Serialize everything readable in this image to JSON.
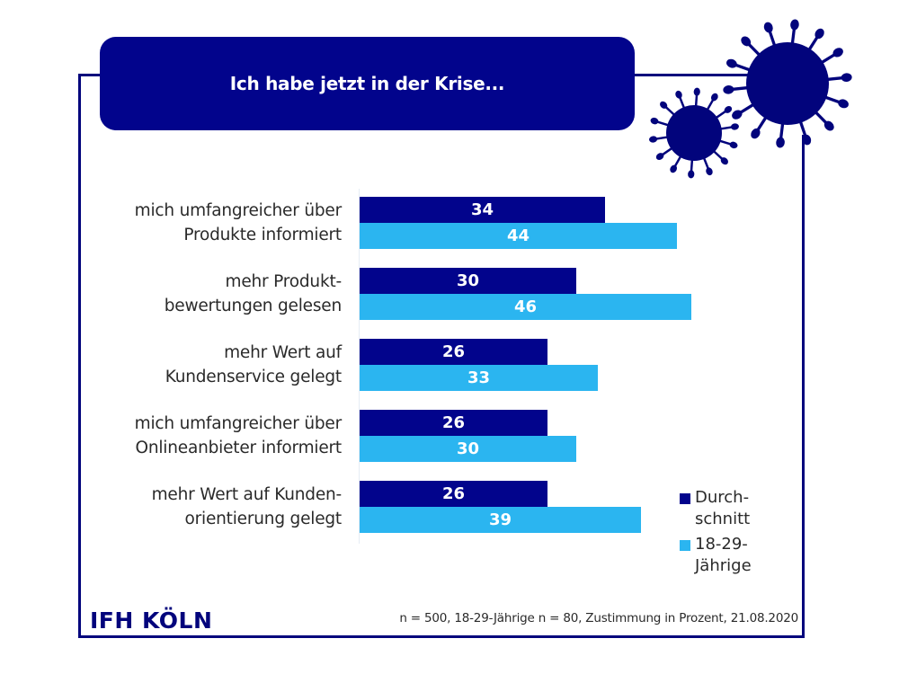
{
  "header": {
    "title": "Ich habe jetzt in der Krise..."
  },
  "colors": {
    "dark_navy": "#02048c",
    "light_blue": "#2bb5f0",
    "frame": "#02047c"
  },
  "decorations": {
    "icons": [
      "virus-icon-large",
      "virus-icon-small"
    ]
  },
  "chart_data": {
    "type": "bar",
    "orientation": "horizontal",
    "title": "Ich habe jetzt in der Krise...",
    "xlabel": "",
    "ylabel": "",
    "unit": "Zustimmung in Prozent",
    "grid": false,
    "legend_position": "bottom-right",
    "xlim": [
      0,
      60
    ],
    "categories": [
      [
        "mich umfangreicher über",
        "Produkte informiert"
      ],
      [
        "mehr Produkt-",
        "bewertungen gelesen"
      ],
      [
        "mehr Wert auf",
        "Kundenservice gelegt"
      ],
      [
        "mich umfangreicher über",
        "Onlineanbieter informiert"
      ],
      [
        "mehr Wert auf Kunden-",
        "orientierung gelegt"
      ]
    ],
    "series": [
      {
        "name": "Durchschnitt",
        "legend_label": "Durch-\nschnitt",
        "color": "#02048c",
        "values": [
          34,
          30,
          26,
          26,
          26
        ]
      },
      {
        "name": "18-29-Jährige",
        "legend_label": "18-29-\nJährige",
        "color": "#2bb5f0",
        "values": [
          44,
          46,
          33,
          30,
          39
        ]
      }
    ]
  },
  "footer": {
    "logo": "IFH KÖLN",
    "note": "n = 500, 18-29-Jährige n = 80, Zustimmung in Prozent, 21.08.2020"
  }
}
